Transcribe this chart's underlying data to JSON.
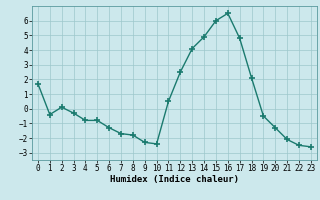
{
  "x": [
    0,
    1,
    2,
    3,
    4,
    5,
    6,
    7,
    8,
    9,
    10,
    11,
    12,
    13,
    14,
    15,
    16,
    17,
    18,
    19,
    20,
    21,
    22,
    23
  ],
  "y": [
    1.7,
    -0.4,
    0.1,
    -0.3,
    -0.8,
    -0.8,
    -1.3,
    -1.7,
    -1.8,
    -2.3,
    -2.4,
    0.5,
    2.5,
    4.1,
    4.9,
    6.0,
    6.5,
    4.8,
    2.1,
    -0.5,
    -1.3,
    -2.1,
    -2.5,
    -2.6
  ],
  "line_color": "#1a7a6e",
  "marker": "+",
  "marker_size": 4,
  "bg_color": "#cce8ec",
  "grid_color": "#9ec8cc",
  "xlabel": "Humidex (Indice chaleur)",
  "xlim": [
    -0.5,
    23.5
  ],
  "ylim": [
    -3.5,
    7.0
  ],
  "yticks": [
    -3,
    -2,
    -1,
    0,
    1,
    2,
    3,
    4,
    5,
    6
  ],
  "xticks": [
    0,
    1,
    2,
    3,
    4,
    5,
    6,
    7,
    8,
    9,
    10,
    11,
    12,
    13,
    14,
    15,
    16,
    17,
    18,
    19,
    20,
    21,
    22,
    23
  ],
  "xlabel_fontsize": 6.5,
  "tick_fontsize": 5.5,
  "line_width": 1.0,
  "marker_linewidth": 1.2
}
